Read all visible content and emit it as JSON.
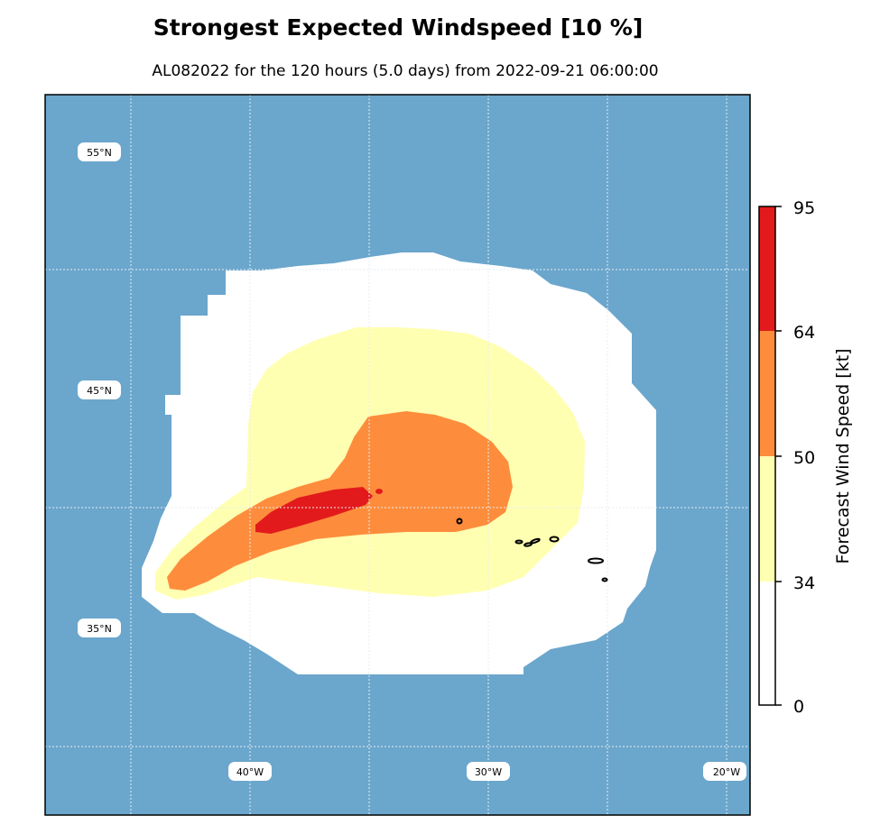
{
  "title": "Strongest Expected Windspeed [10 %]",
  "subtitle": "AL082022 for the 120 hours (5.0 days) from 2022-09-21 06:00:00",
  "map": {
    "lat_labels": [
      "55°N",
      "45°N",
      "35°N"
    ],
    "lon_labels": [
      "40°W",
      "30°W",
      "20°W"
    ],
    "ocean_color": "#6ba6cc",
    "land_outline_color": "#000000"
  },
  "colorbar": {
    "label": "Forecast Wind Speed [kt]",
    "ticks": [
      "95",
      "64",
      "50",
      "34",
      "0"
    ],
    "bins": [
      {
        "from": 0,
        "to": 34,
        "color": "#ffffff"
      },
      {
        "from": 34,
        "to": 50,
        "color": "#ffffb2"
      },
      {
        "from": 50,
        "to": 64,
        "color": "#fd8d3c"
      },
      {
        "from": 64,
        "to": 95,
        "color": "#e31a1c"
      }
    ]
  }
}
